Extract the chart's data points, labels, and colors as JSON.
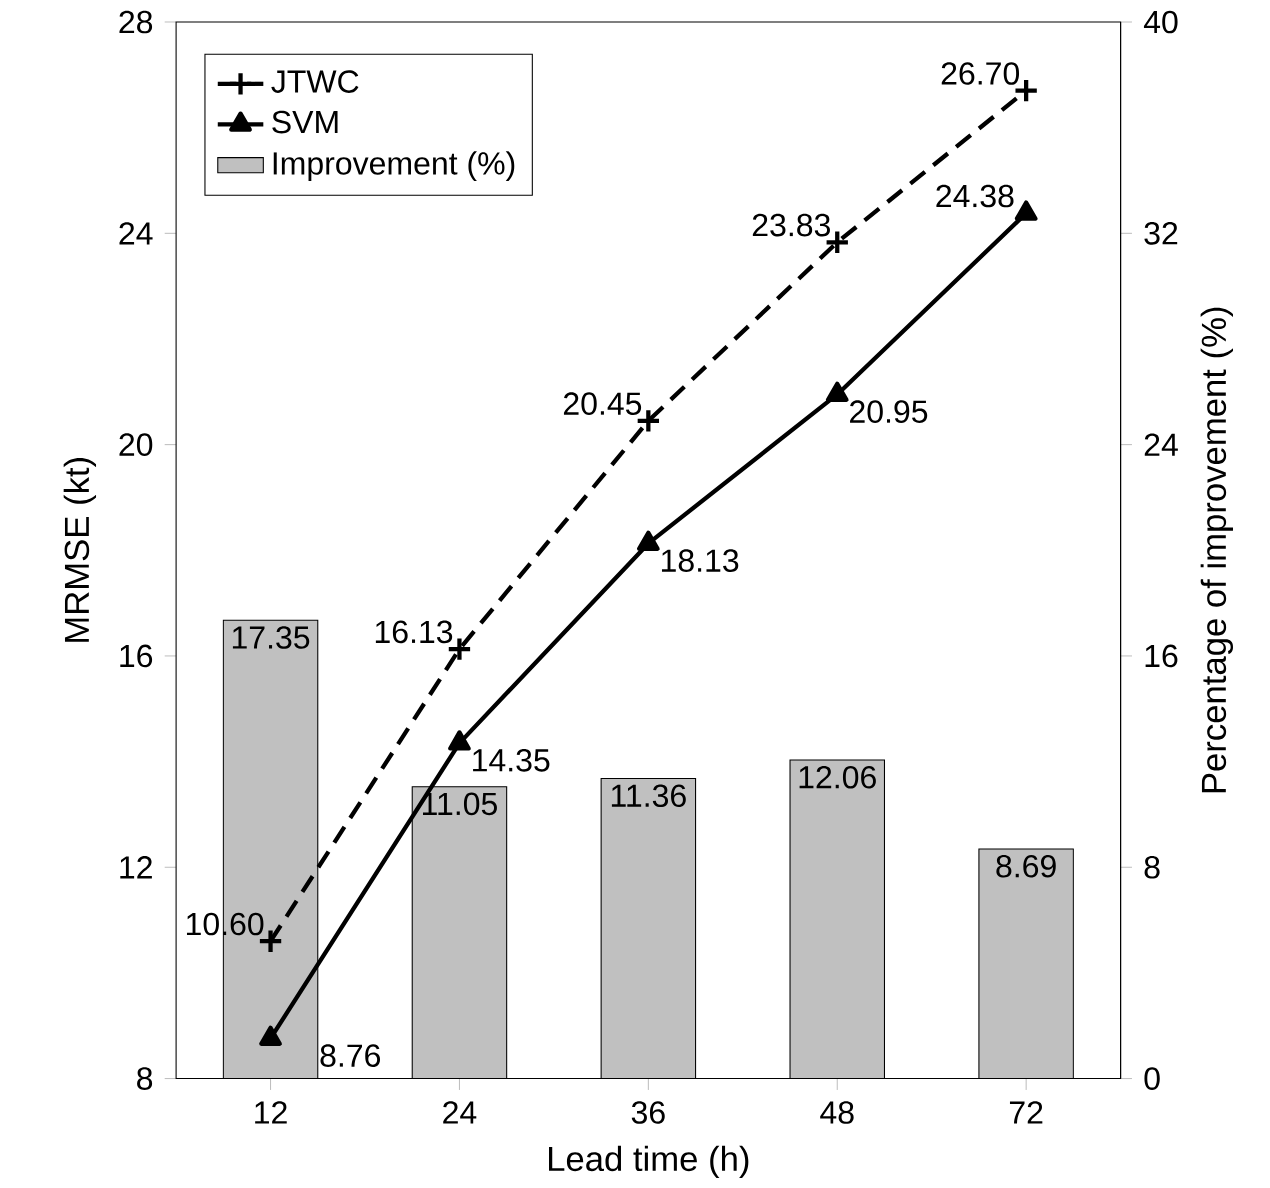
{
  "chart_data": {
    "type": "line",
    "xlabel": "Lead time (h)",
    "ylabel": "MRMSE (kt)",
    "y2label": "Percentage of improvement (%)",
    "categories": [
      "12",
      "24",
      "36",
      "48",
      "72"
    ],
    "ylim": [
      8,
      28
    ],
    "yticks": [
      8,
      12,
      16,
      20,
      24,
      28
    ],
    "y2lim": [
      0,
      40
    ],
    "y2ticks": [
      0,
      8,
      16,
      24,
      32,
      40
    ],
    "legend": "top left",
    "series": [
      {
        "name": "JTWC",
        "color": "#000000",
        "marker": "cross",
        "line_style": "dashed",
        "values": [
          10.6,
          16.13,
          20.45,
          23.83,
          26.7
        ],
        "value_labels": [
          "10.60",
          "16.13",
          "20.45",
          "23.83",
          "26.70"
        ]
      },
      {
        "name": "SVM",
        "color": "#000000",
        "marker": "triangle",
        "line_style": "solid",
        "values": [
          8.76,
          14.35,
          18.13,
          20.95,
          24.38
        ],
        "value_labels": [
          "8.76",
          "14.35",
          "18.13",
          "20.95",
          "24.38"
        ]
      },
      {
        "name": "Improvement (%)",
        "type": "bar",
        "axis": "y2",
        "color": "#c0c0c0",
        "values": [
          17.35,
          11.05,
          11.36,
          12.06,
          8.69
        ],
        "value_labels": [
          "17.35",
          "11.05",
          "11.36",
          "12.06",
          "8.69"
        ]
      }
    ]
  }
}
